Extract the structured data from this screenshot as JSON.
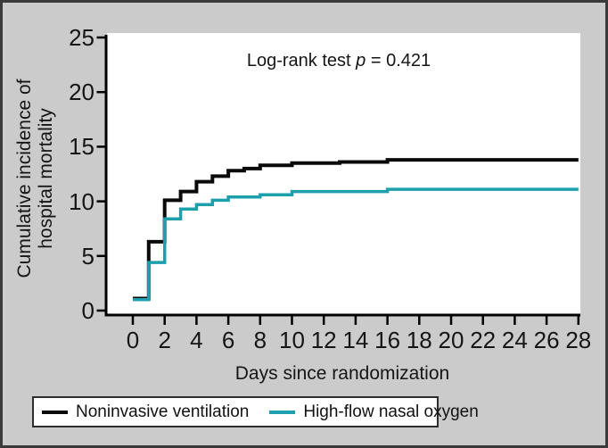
{
  "figure": {
    "background": "#cbcbcb",
    "border_color": "#3a3a3a",
    "plot_background": "#ffffff",
    "axis_color": "#000000"
  },
  "annotation": {
    "before": "Log-rank test ",
    "p": "p",
    "after": " = 0.421"
  },
  "axes": {
    "xlabel": "Days since randomization",
    "ylabel_line1": "Cumulative incidence of",
    "ylabel_line2": "hospital mortality"
  },
  "legend": {
    "items": [
      {
        "label": "Noninvasive ventilation",
        "color": "#0a0a0a"
      },
      {
        "label": "High-flow nasal oxygen",
        "color": "#1d9fae"
      }
    ]
  },
  "chart_data": {
    "type": "line",
    "subtype": "step-post",
    "title": "",
    "annotation": "Log-rank test p = 0.421",
    "xlabel": "Days since randomization",
    "ylabel": "Cumulative incidence of hospital mortality",
    "xlim": [
      0,
      28
    ],
    "ylim": [
      0,
      25
    ],
    "xticks": [
      0,
      2,
      4,
      6,
      8,
      10,
      12,
      14,
      16,
      18,
      20,
      22,
      24,
      26,
      28
    ],
    "yticks": [
      0,
      5,
      10,
      15,
      20,
      25
    ],
    "grid": false,
    "legend_position": "bottom",
    "series": [
      {
        "name": "Noninvasive ventilation",
        "color": "#0a0a0a",
        "line_width": 4,
        "x": [
          0,
          1,
          2,
          3,
          4,
          5,
          6,
          7,
          8,
          10,
          13,
          16,
          28
        ],
        "y": [
          1.1,
          6.3,
          10.1,
          10.9,
          11.8,
          12.3,
          12.8,
          13.0,
          13.3,
          13.5,
          13.6,
          13.8,
          13.8
        ]
      },
      {
        "name": "High-flow nasal oxygen",
        "color": "#1d9fae",
        "line_width": 3.5,
        "x": [
          0,
          1,
          2,
          3,
          4,
          5,
          6,
          8,
          10,
          16,
          28
        ],
        "y": [
          1.0,
          4.4,
          8.4,
          9.3,
          9.7,
          10.1,
          10.4,
          10.6,
          10.9,
          11.1,
          11.1
        ]
      }
    ]
  }
}
